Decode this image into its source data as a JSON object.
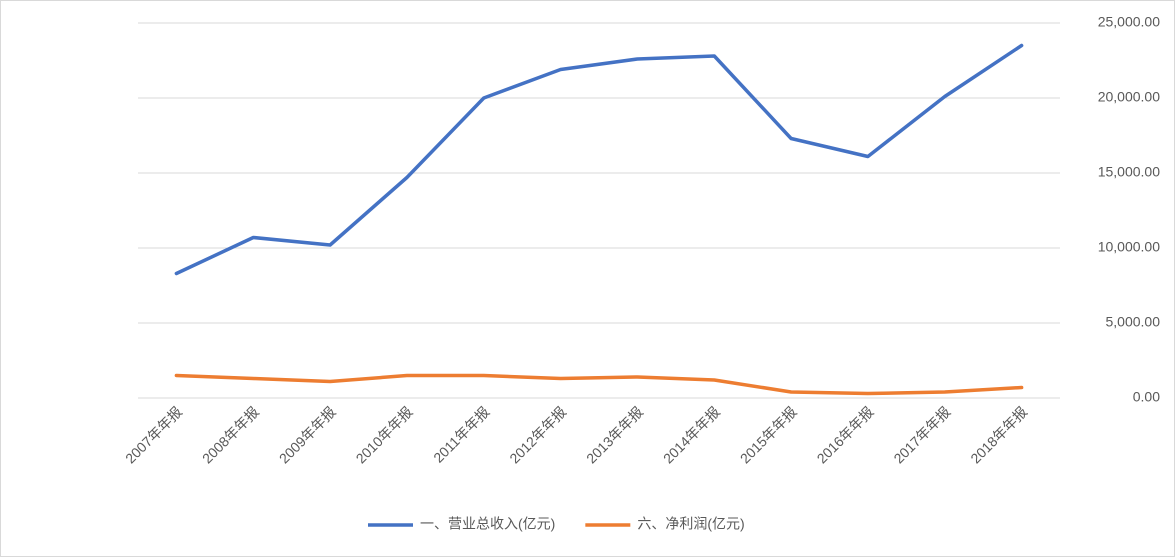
{
  "chart_data": {
    "type": "line",
    "categories": [
      "2007年年报",
      "2008年年报",
      "2009年年报",
      "2010年年报",
      "2011年年报",
      "2012年年报",
      "2013年年报",
      "2014年年报",
      "2015年年报",
      "2016年年报",
      "2017年年报",
      "2018年年报"
    ],
    "series": [
      {
        "name": "一、营业总收入(亿元)",
        "color": "#4472c4",
        "values": [
          8300,
          10700,
          10200,
          14700,
          20000,
          21900,
          22600,
          22800,
          17300,
          16100,
          20100,
          23500
        ]
      },
      {
        "name": "六、净利润(亿元)",
        "color": "#ed7d31",
        "values": [
          1500,
          1300,
          1100,
          1500,
          1500,
          1300,
          1400,
          1200,
          400,
          300,
          400,
          700
        ]
      }
    ],
    "ylim": [
      0,
      25000
    ],
    "yticks": [
      {
        "value": 0,
        "label": "0.00"
      },
      {
        "value": 5000,
        "label": "5,000.00"
      },
      {
        "value": 10000,
        "label": "10,000.00"
      },
      {
        "value": 15000,
        "label": "15,000.00"
      },
      {
        "value": 20000,
        "label": "20,000.00"
      },
      {
        "value": 25000,
        "label": "25,000.00"
      }
    ],
    "grid": true,
    "legend": "bottom"
  }
}
